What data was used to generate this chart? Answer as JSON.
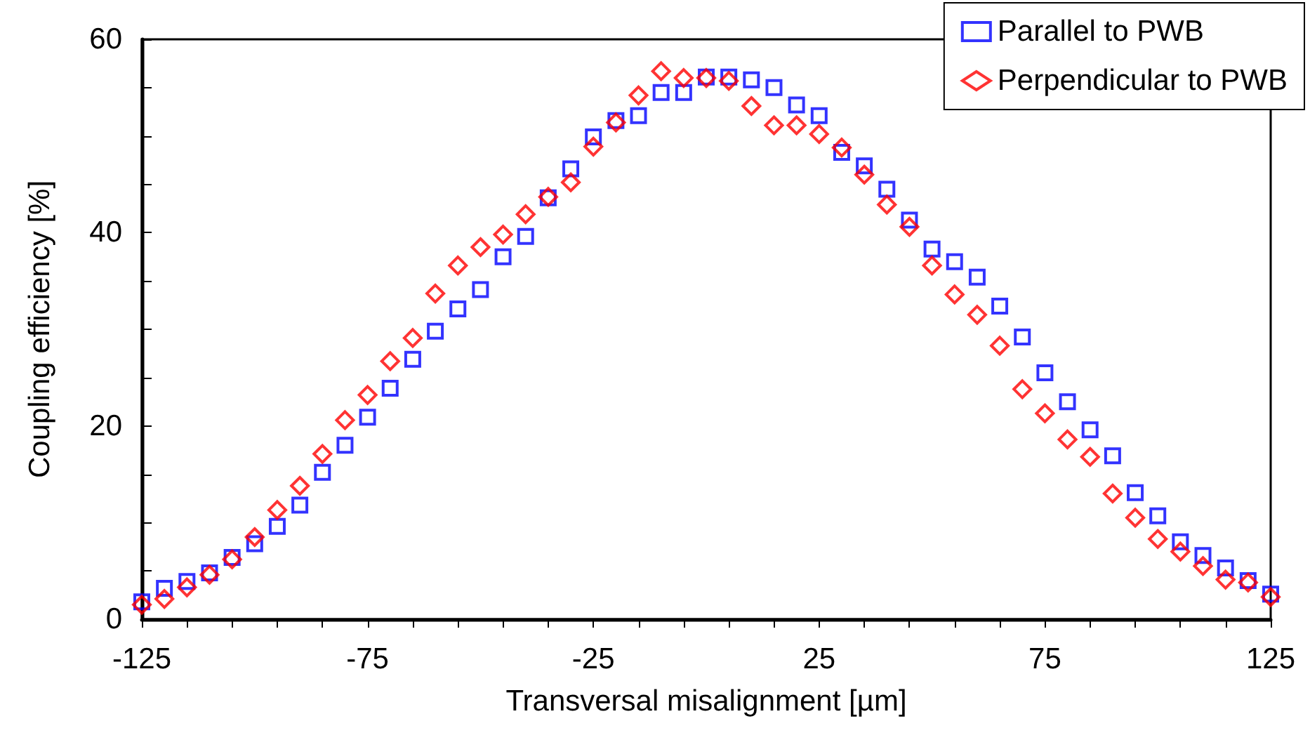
{
  "chart_data": {
    "type": "scatter",
    "xlabel": "Transversal misalignment [µm]",
    "ylabel": "Coupling efficiency [%]",
    "x": [
      -125,
      -120,
      -115,
      -110,
      -105,
      -100,
      -95,
      -90,
      -85,
      -80,
      -75,
      -70,
      -65,
      -60,
      -55,
      -50,
      -45,
      -40,
      -35,
      -30,
      -25,
      -20,
      -15,
      -10,
      -5,
      0,
      5,
      10,
      15,
      20,
      25,
      30,
      35,
      40,
      45,
      50,
      55,
      60,
      65,
      70,
      75,
      80,
      85,
      90,
      95,
      100,
      105,
      110,
      115,
      120,
      125
    ],
    "series": [
      {
        "name": "Parallel to PWB",
        "color": "#0000ff",
        "marker": "square",
        "values": [
          1.8,
          3.2,
          3.9,
          4.8,
          6.4,
          7.8,
          9.6,
          11.8,
          15.2,
          18.0,
          20.9,
          23.9,
          26.9,
          29.8,
          32.1,
          34.1,
          37.5,
          39.6,
          43.6,
          46.6,
          49.9,
          51.6,
          52.1,
          54.5,
          54.5,
          56.1,
          56.1,
          55.8,
          55.0,
          53.2,
          52.1,
          48.3,
          46.9,
          44.5,
          41.3,
          38.3,
          37.0,
          35.4,
          32.4,
          29.2,
          25.5,
          22.5,
          19.6,
          16.9,
          13.1,
          10.7,
          8.0,
          6.6,
          5.3,
          4.0,
          2.6
        ]
      },
      {
        "name": "Perpendicular to PWB",
        "color": "#ff0000",
        "marker": "diamond",
        "values": [
          1.5,
          2.1,
          3.3,
          4.6,
          6.2,
          8.5,
          11.3,
          13.8,
          17.1,
          20.6,
          23.2,
          26.7,
          29.1,
          33.7,
          36.6,
          38.5,
          39.8,
          41.9,
          43.7,
          45.2,
          48.9,
          51.4,
          54.2,
          56.7,
          56.0,
          56.0,
          55.7,
          53.1,
          51.1,
          51.1,
          50.2,
          48.8,
          46.0,
          42.9,
          40.6,
          36.6,
          33.6,
          31.5,
          28.3,
          23.8,
          21.3,
          18.6,
          16.8,
          13.0,
          10.5,
          8.3,
          7.0,
          5.5,
          4.1,
          3.8,
          2.3
        ]
      }
    ],
    "xlim": [
      -125,
      125
    ],
    "xticks": [
      -125,
      {
        "value": -115,
        "label": null
      },
      {
        "value": -105,
        "label": null
      },
      {
        "value": -95,
        "label": null
      },
      {
        "value": -85,
        "label": null
      },
      -75,
      {
        "value": -65,
        "label": null
      },
      {
        "value": -55,
        "label": null
      },
      {
        "value": -45,
        "label": null
      },
      {
        "value": -35,
        "label": null
      },
      -25,
      {
        "value": -15,
        "label": null
      },
      {
        "value": -5,
        "label": null
      },
      {
        "value": 5,
        "label": null
      },
      {
        "value": 15,
        "label": null
      },
      25,
      {
        "value": 35,
        "label": null
      },
      {
        "value": 45,
        "label": null
      },
      {
        "value": 55,
        "label": null
      },
      {
        "value": 65,
        "label": null
      },
      75,
      {
        "value": 85,
        "label": null
      },
      {
        "value": 95,
        "label": null
      },
      {
        "value": 105,
        "label": null
      },
      {
        "value": 115,
        "label": null
      },
      125
    ],
    "ylim": [
      0,
      60
    ],
    "yticks": [
      0,
      {
        "value": 5,
        "label": null
      },
      {
        "value": 10,
        "label": null
      },
      {
        "value": 15,
        "label": null
      },
      20,
      {
        "value": 25,
        "label": null
      },
      {
        "value": 30,
        "label": null
      },
      {
        "value": 35,
        "label": null
      },
      40,
      {
        "value": 45,
        "label": null
      },
      {
        "value": 50,
        "label": null
      },
      {
        "value": 55,
        "label": null
      },
      60
    ],
    "grid": false,
    "legend": "top right"
  }
}
